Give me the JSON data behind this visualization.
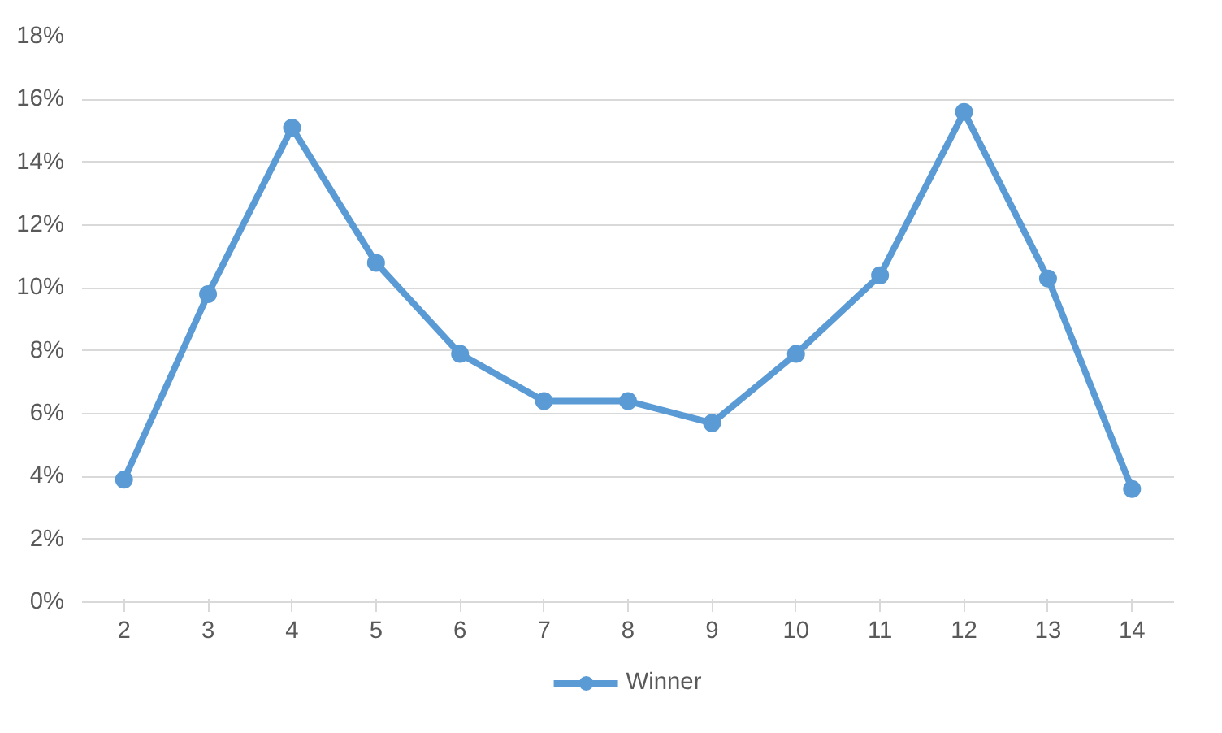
{
  "chart_data": {
    "type": "line",
    "categories": [
      "2",
      "3",
      "4",
      "5",
      "6",
      "7",
      "8",
      "9",
      "10",
      "11",
      "12",
      "13",
      "14"
    ],
    "series": [
      {
        "name": "Winner",
        "color": "#5b9bd5",
        "values": [
          3.9,
          9.8,
          15.1,
          10.8,
          7.9,
          6.4,
          6.4,
          5.7,
          7.9,
          10.4,
          15.6,
          10.3,
          3.6
        ]
      }
    ],
    "ylim": [
      0,
      18
    ],
    "yticks": [
      {
        "value": 0,
        "label": "0%"
      },
      {
        "value": 2,
        "label": "2%"
      },
      {
        "value": 4,
        "label": "4%"
      },
      {
        "value": 6,
        "label": "6%"
      },
      {
        "value": 8,
        "label": "8%"
      },
      {
        "value": 10,
        "label": "10%"
      },
      {
        "value": 12,
        "label": "12%"
      },
      {
        "value": 14,
        "label": "14%"
      },
      {
        "value": 16,
        "label": "16%"
      },
      {
        "value": 18,
        "label": "18%"
      }
    ],
    "grid": "y",
    "legend": "bottom",
    "marker": "circle",
    "line_style": "solid"
  }
}
